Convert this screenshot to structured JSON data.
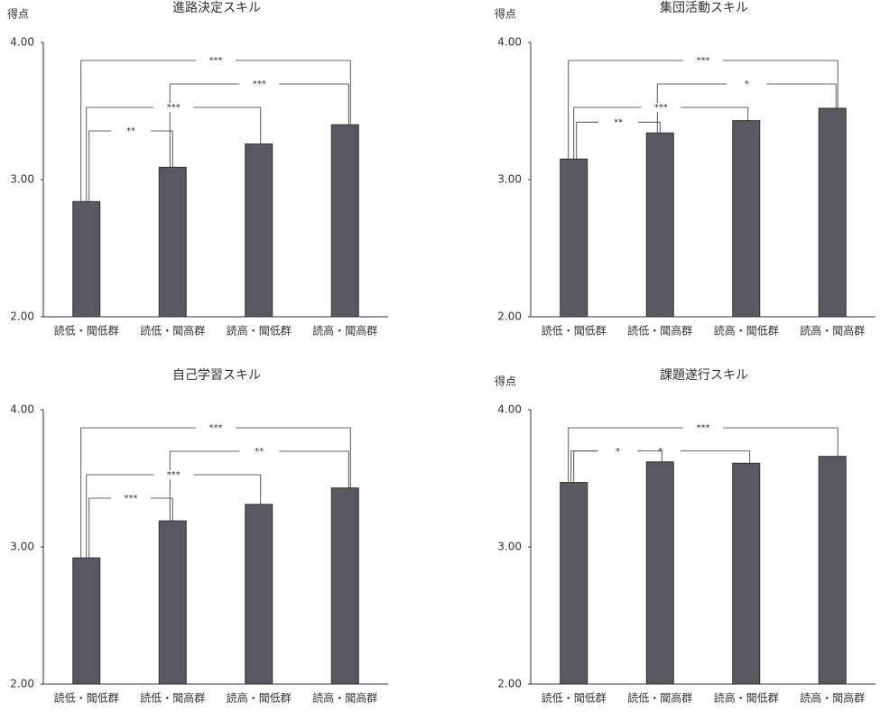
{
  "charts": [
    {
      "chart_data": {
        "type": "bar",
        "title": "進路決定スキル",
        "ylabel": "得点",
        "categories": [
          "読低・聞低群",
          "読低・聞高群",
          "読高・聞低群",
          "読高・聞高群"
        ],
        "values": [
          2.84,
          3.09,
          3.26,
          3.4
        ],
        "color": "#58585e",
        "ylim": [
          2,
          4
        ],
        "yticks": [
          {
            "value": 2,
            "label": "2.00"
          },
          {
            "value": 3,
            "label": "3.00"
          },
          {
            "value": 4,
            "label": "4.00"
          }
        ],
        "significance": [
          {
            "between": [
              "読低・聞低群",
              "読高・聞高群"
            ],
            "label": "***"
          },
          {
            "between": [
              "読低・聞高群",
              "読高・聞高群"
            ],
            "label": "***"
          },
          {
            "between": [
              "読低・聞低群",
              "読高・聞低群"
            ],
            "label": "***"
          },
          {
            "between": [
              "読低・聞低群",
              "読低・聞高群"
            ],
            "label": "**"
          }
        ]
      }
    },
    {
      "chart_data": {
        "type": "bar",
        "title": "集団活動スキル",
        "ylabel": "得点",
        "categories": [
          "読低・聞低群",
          "読低・聞高群",
          "読高・聞低群",
          "読高・聞高群"
        ],
        "values": [
          3.15,
          3.34,
          3.43,
          3.52
        ],
        "color": "#58585e",
        "ylim": [
          2,
          4
        ],
        "yticks": [
          {
            "value": 2,
            "label": "2.00"
          },
          {
            "value": 3,
            "label": "3.00"
          },
          {
            "value": 4,
            "label": "4.00"
          }
        ],
        "significance": [
          {
            "between": [
              "読低・聞低群",
              "読高・聞高群"
            ],
            "label": "***"
          },
          {
            "between": [
              "読低・聞高群",
              "読高・聞高群"
            ],
            "label": "*"
          },
          {
            "between": [
              "読低・聞低群",
              "読高・聞低群"
            ],
            "label": "***"
          },
          {
            "between": [
              "読低・聞低群",
              "読低・聞高群"
            ],
            "label": "**"
          }
        ]
      }
    },
    {
      "chart_data": {
        "type": "bar",
        "title": "自己学習スキル",
        "categories": [
          "読低・聞低群",
          "読低・聞高群",
          "読高・聞低群",
          "読高・聞高群"
        ],
        "values": [
          2.92,
          3.19,
          3.31,
          3.43
        ],
        "color": "#58585e",
        "ylim": [
          2,
          4
        ],
        "yticks": [
          {
            "value": 2,
            "label": "2.00"
          },
          {
            "value": 3,
            "label": "3.00"
          },
          {
            "value": 4,
            "label": "4.00"
          }
        ],
        "significance": [
          {
            "between": [
              "読低・聞低群",
              "読高・聞高群"
            ],
            "label": "***"
          },
          {
            "between": [
              "読低・聞高群",
              "読高・聞高群"
            ],
            "label": "**"
          },
          {
            "between": [
              "読低・聞低群",
              "読高・聞低群"
            ],
            "label": "***"
          },
          {
            "between": [
              "読低・聞低群",
              "読低・聞高群"
            ],
            "label": "***"
          }
        ]
      }
    },
    {
      "chart_data": {
        "type": "bar",
        "title": "課題遂行スキル",
        "ylabel": "得点",
        "categories": [
          "読低・聞低群",
          "読低・聞高群",
          "読高・聞低群",
          "読高・聞高群"
        ],
        "values": [
          3.47,
          3.62,
          3.61,
          3.66
        ],
        "color": "#58585e",
        "ylim": [
          2,
          4
        ],
        "yticks": [
          {
            "value": 2,
            "label": "2.00"
          },
          {
            "value": 3,
            "label": "3.00"
          },
          {
            "value": 4,
            "label": "4.00"
          }
        ],
        "significance": [
          {
            "between": [
              "読低・聞低群",
              "読高・聞高群"
            ],
            "label": "***"
          },
          {
            "between": [
              "読低・聞低群",
              "読高・聞低群"
            ],
            "label": "*"
          },
          {
            "between": [
              "読低・聞低群",
              "読低・聞高群"
            ],
            "label": "*"
          }
        ]
      }
    }
  ]
}
